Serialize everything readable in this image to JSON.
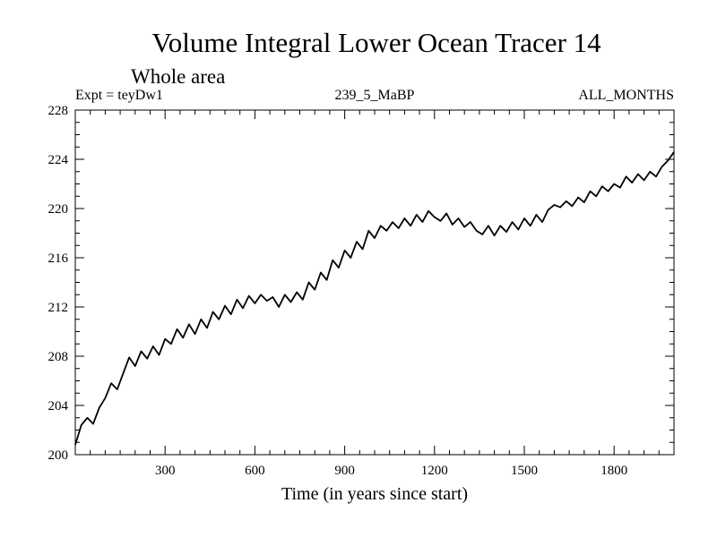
{
  "chart_data": {
    "type": "line",
    "title": "Volume Integral Lower Ocean Tracer 14",
    "subtitle": "Whole area",
    "expt_label": "Expt = teyDw1",
    "run_label": "239_5_MaBP",
    "months_label": "ALL_MONTHS",
    "xlabel": "Time (in years since start)",
    "ylabel": "",
    "xlim": [
      0,
      2000
    ],
    "ylim": [
      200,
      228
    ],
    "x_ticks": [
      300,
      600,
      900,
      1200,
      1500,
      1800
    ],
    "y_ticks": [
      200,
      204,
      208,
      212,
      216,
      220,
      224,
      228
    ],
    "series": [
      {
        "name": "Tracer 14",
        "x": [
          0,
          20,
          40,
          60,
          80,
          100,
          120,
          140,
          160,
          180,
          200,
          220,
          240,
          260,
          280,
          300,
          320,
          340,
          360,
          380,
          400,
          420,
          440,
          460,
          480,
          500,
          520,
          540,
          560,
          580,
          600,
          620,
          640,
          660,
          680,
          700,
          720,
          740,
          760,
          780,
          800,
          820,
          840,
          860,
          880,
          900,
          920,
          940,
          960,
          980,
          1000,
          1020,
          1040,
          1060,
          1080,
          1100,
          1120,
          1140,
          1160,
          1180,
          1200,
          1220,
          1240,
          1260,
          1280,
          1300,
          1320,
          1340,
          1360,
          1380,
          1400,
          1420,
          1440,
          1460,
          1480,
          1500,
          1520,
          1540,
          1560,
          1580,
          1600,
          1620,
          1640,
          1660,
          1680,
          1700,
          1720,
          1740,
          1760,
          1780,
          1800,
          1820,
          1840,
          1860,
          1880,
          1900,
          1920,
          1940,
          1960,
          1980,
          2000
        ],
        "values": [
          200.8,
          202.4,
          203.0,
          202.5,
          203.8,
          204.6,
          205.8,
          205.3,
          206.6,
          207.9,
          207.2,
          208.4,
          207.8,
          208.8,
          208.1,
          209.4,
          209.0,
          210.2,
          209.5,
          210.6,
          209.8,
          211.0,
          210.3,
          211.6,
          211.0,
          212.1,
          211.4,
          212.6,
          211.9,
          212.9,
          212.3,
          213.0,
          212.5,
          212.8,
          212.0,
          213.0,
          212.4,
          213.2,
          212.6,
          214.0,
          213.4,
          214.8,
          214.2,
          215.8,
          215.2,
          216.6,
          216.0,
          217.3,
          216.7,
          218.2,
          217.6,
          218.6,
          218.2,
          218.9,
          218.4,
          219.2,
          218.6,
          219.5,
          218.9,
          219.8,
          219.3,
          219.0,
          219.6,
          218.7,
          219.2,
          218.5,
          218.9,
          218.2,
          217.9,
          218.6,
          217.8,
          218.6,
          218.1,
          218.9,
          218.3,
          219.2,
          218.6,
          219.5,
          218.9,
          219.9,
          220.3,
          220.1,
          220.6,
          220.2,
          220.9,
          220.5,
          221.4,
          221.0,
          221.8,
          221.4,
          222.0,
          221.7,
          222.6,
          222.1,
          222.8,
          222.3,
          223.0,
          222.6,
          223.4,
          223.9,
          224.6
        ]
      }
    ]
  }
}
